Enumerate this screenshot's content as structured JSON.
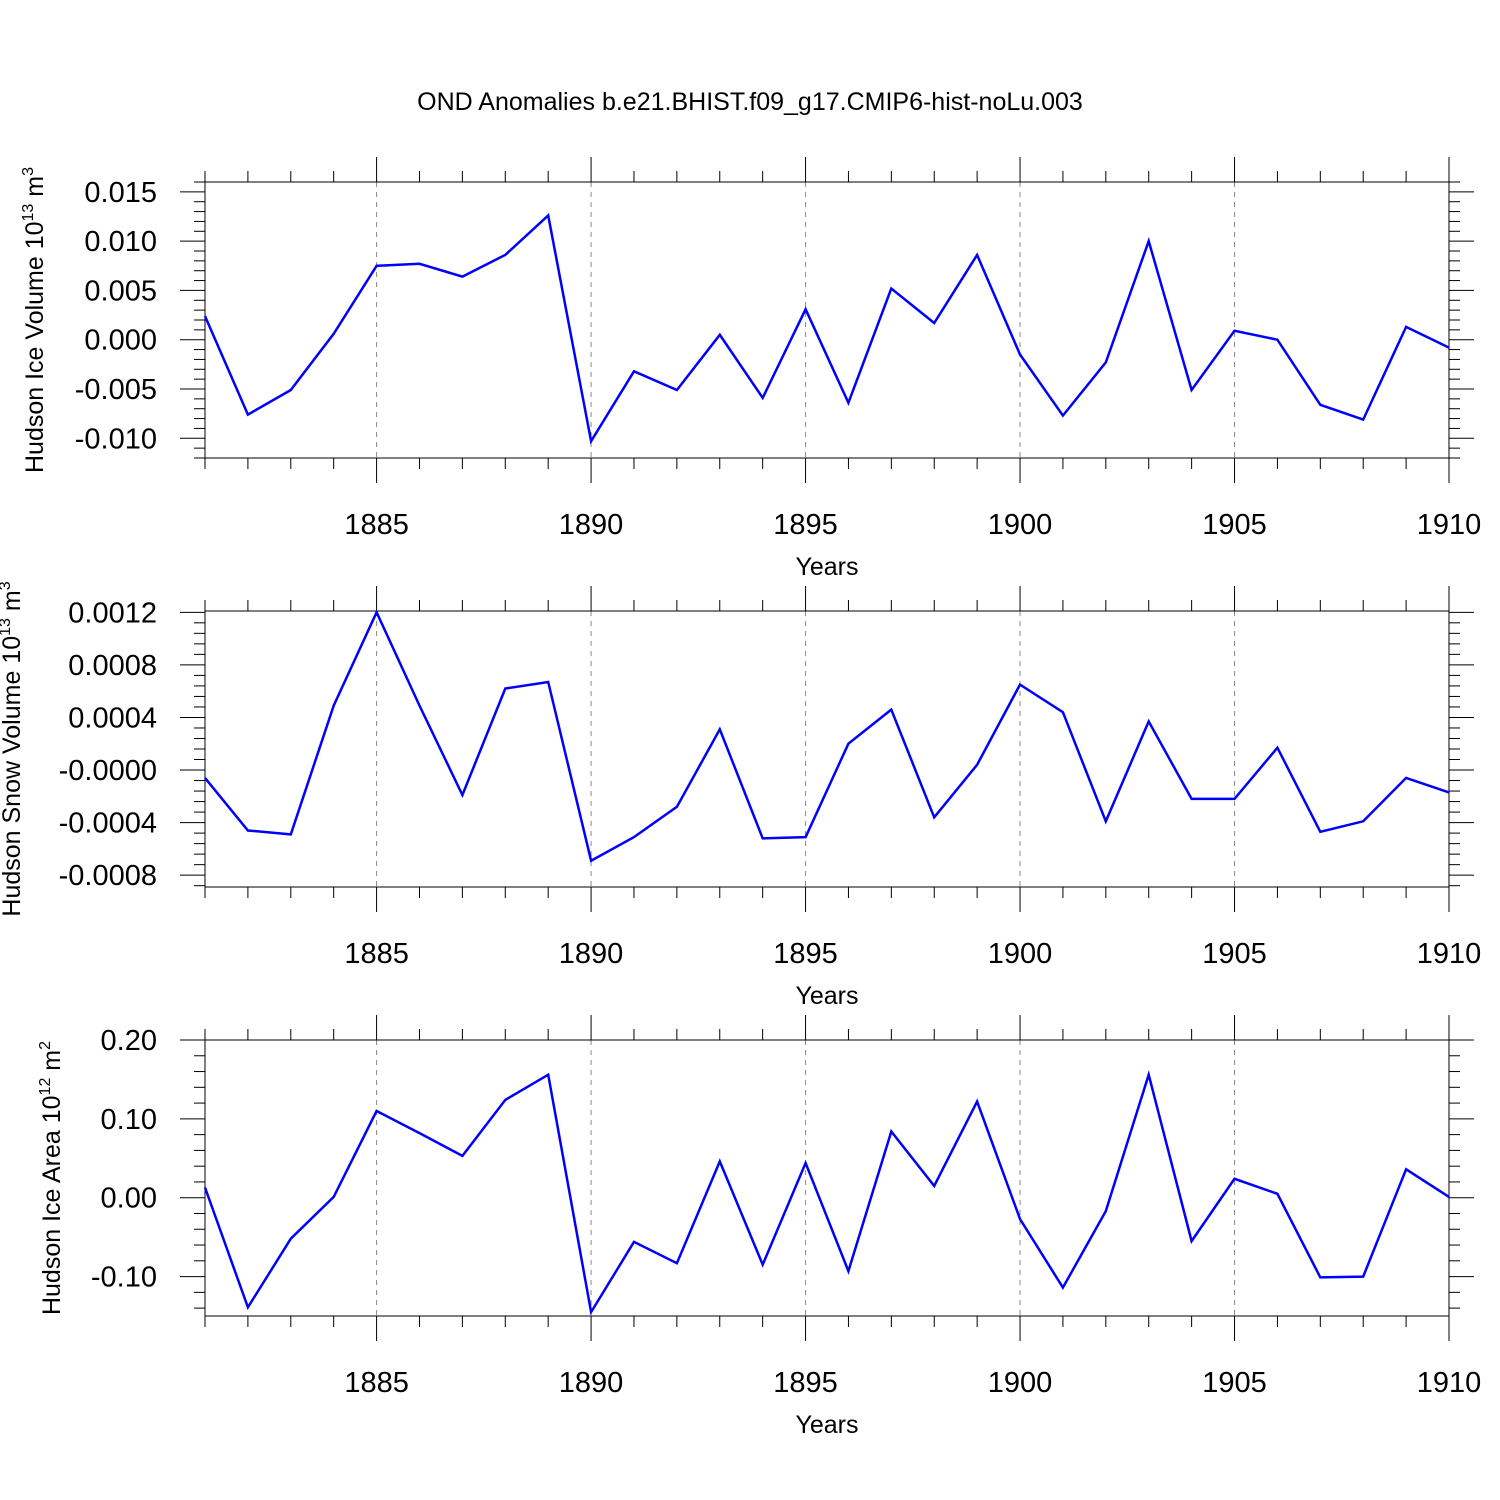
{
  "figure": {
    "title": "OND Anomalies b.e21.BHIST.f09_g17.CMIP6-hist-noLu.003"
  },
  "colors": {
    "line": "#0000ff",
    "axis": "#000000",
    "grid": "#888888"
  },
  "chart_data": [
    {
      "type": "line",
      "ylabel_main": "Hudson Ice Volume 10",
      "ylabel_exp": "13",
      "ylabel_unit": " m",
      "ylabel_unit_exp": "3",
      "xlabel": "Years",
      "xlim": [
        1881,
        1910
      ],
      "ylim": [
        -0.012,
        0.016
      ],
      "yticks": [
        -0.01,
        -0.005,
        0.0,
        0.005,
        0.01,
        0.015
      ],
      "ytick_labels": [
        "-0.010",
        "-0.005",
        "0.000",
        "0.005",
        "0.010",
        "0.015"
      ],
      "xticks": [
        1885,
        1890,
        1895,
        1900,
        1905,
        1910
      ],
      "xtick_labels": [
        "1885",
        "1890",
        "1895",
        "1900",
        "1905",
        "1910"
      ],
      "grid": "dashed vertical at major x ticks",
      "series": [
        {
          "x": [
            1881,
            1882,
            1883,
            1884,
            1885,
            1886,
            1887,
            1888,
            1889,
            1890,
            1891,
            1892,
            1893,
            1894,
            1895,
            1896,
            1897,
            1898,
            1899,
            1900,
            1901,
            1902,
            1903,
            1904,
            1905,
            1906,
            1907,
            1908,
            1909,
            1910
          ],
          "values": [
            0.0024,
            -0.0076,
            -0.0051,
            0.0006,
            0.0075,
            0.0077,
            0.0064,
            0.0086,
            0.0126,
            -0.0103,
            -0.0032,
            -0.0051,
            0.0005,
            -0.0059,
            0.0031,
            -0.0064,
            0.0052,
            0.0017,
            0.0086,
            -0.0015,
            -0.0077,
            -0.0023,
            0.01,
            -0.0051,
            0.0009,
            0.0,
            -0.0066,
            -0.0081,
            0.0013,
            -0.0008
          ]
        }
      ]
    },
    {
      "type": "line",
      "ylabel_main": "Hudson Snow Volume 10",
      "ylabel_exp": "13",
      "ylabel_unit": " m",
      "ylabel_unit_exp": "3",
      "xlabel": "Years",
      "xlim": [
        1881,
        1910
      ],
      "ylim": [
        -0.00089,
        0.00121
      ],
      "yticks": [
        -0.0008,
        -0.0004,
        0.0,
        0.0004,
        0.0008,
        0.0012
      ],
      "ytick_labels": [
        "-0.0008",
        "-0.0004",
        "-0.0000",
        "0.0004",
        "0.0008",
        "0.0012"
      ],
      "xticks": [
        1885,
        1890,
        1895,
        1900,
        1905,
        1910
      ],
      "xtick_labels": [
        "1885",
        "1890",
        "1895",
        "1900",
        "1905",
        "1910"
      ],
      "grid": "dashed vertical at major x ticks",
      "series": [
        {
          "x": [
            1881,
            1882,
            1883,
            1884,
            1885,
            1886,
            1887,
            1888,
            1889,
            1890,
            1891,
            1892,
            1893,
            1894,
            1895,
            1896,
            1897,
            1898,
            1899,
            1900,
            1901,
            1902,
            1903,
            1904,
            1905,
            1906,
            1907,
            1908,
            1909,
            1910
          ],
          "values": [
            -6e-05,
            -0.00046,
            -0.00049,
            0.00049,
            0.0012,
            0.00049,
            -0.00019,
            0.00062,
            0.00067,
            -0.00069,
            -0.00051,
            -0.00028,
            0.00031,
            -0.00052,
            -0.00051,
            0.0002,
            0.00046,
            -0.00036,
            4e-05,
            0.00065,
            0.00044,
            -0.00039,
            0.00037,
            -0.00022,
            -0.00022,
            0.00017,
            -0.00047,
            -0.00039,
            -6e-05,
            -0.00017
          ]
        }
      ]
    },
    {
      "type": "line",
      "ylabel_main": "Hudson Ice Area 10",
      "ylabel_exp": "12",
      "ylabel_unit": " m",
      "ylabel_unit_exp": "2",
      "xlabel": "Years",
      "xlim": [
        1881,
        1910
      ],
      "ylim": [
        -0.15,
        0.2
      ],
      "yticks": [
        -0.1,
        0.0,
        0.1,
        0.2
      ],
      "ytick_labels": [
        "-0.10",
        "0.00",
        "0.10",
        "0.20"
      ],
      "xticks": [
        1885,
        1890,
        1895,
        1900,
        1905,
        1910
      ],
      "xtick_labels": [
        "1885",
        "1890",
        "1895",
        "1900",
        "1905",
        "1910"
      ],
      "grid": "dashed vertical at major x ticks",
      "series": [
        {
          "x": [
            1881,
            1882,
            1883,
            1884,
            1885,
            1886,
            1887,
            1888,
            1889,
            1890,
            1891,
            1892,
            1893,
            1894,
            1895,
            1896,
            1897,
            1898,
            1899,
            1900,
            1901,
            1902,
            1903,
            1904,
            1905,
            1906,
            1907,
            1908,
            1909,
            1910
          ],
          "values": [
            0.013,
            -0.139,
            -0.052,
            0.001,
            0.11,
            0.082,
            0.053,
            0.124,
            0.156,
            -0.145,
            -0.056,
            -0.083,
            0.046,
            -0.085,
            0.044,
            -0.093,
            0.084,
            0.015,
            0.122,
            -0.027,
            -0.114,
            -0.017,
            0.156,
            -0.055,
            0.024,
            0.005,
            -0.101,
            -0.1,
            0.036,
            0.001
          ]
        }
      ]
    }
  ]
}
